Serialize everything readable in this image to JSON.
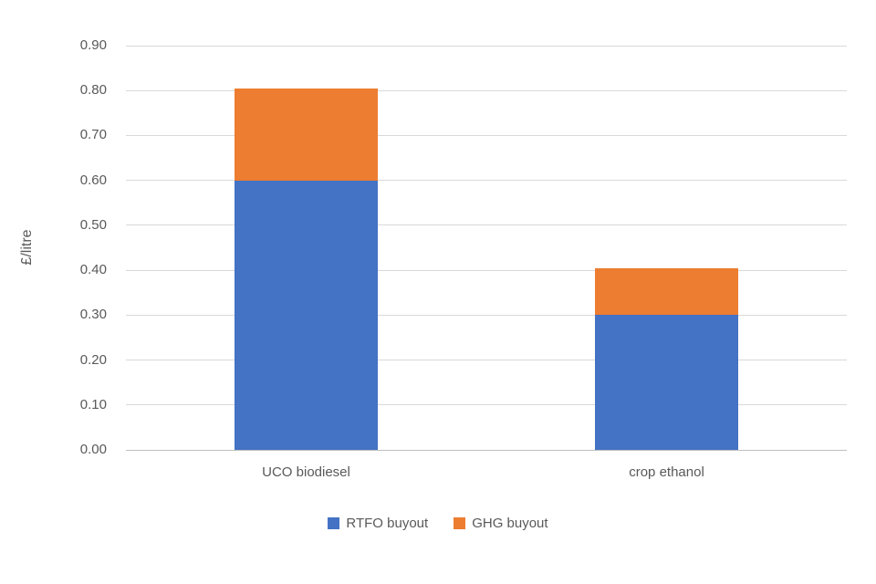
{
  "chart_data": {
    "type": "bar",
    "stacked": true,
    "title": "",
    "categories": [
      "UCO biodiesel",
      "crop ethanol"
    ],
    "series": [
      {
        "name": "RTFO buyout",
        "color": "#4472C4",
        "values": [
          0.6,
          0.3
        ]
      },
      {
        "name": "GHG buyout",
        "color": "#ED7D31",
        "values": [
          0.205,
          0.105
        ]
      }
    ],
    "totals": [
      0.805,
      0.405
    ],
    "xlabel": "",
    "ylabel": "£/litre",
    "ylim": [
      0.0,
      0.9
    ],
    "ytick_step": 0.1,
    "ytick_labels": [
      "0.00",
      "0.10",
      "0.20",
      "0.30",
      "0.40",
      "0.50",
      "0.60",
      "0.70",
      "0.80",
      "0.90"
    ],
    "grid": true,
    "legend_position": "bottom"
  },
  "style": {
    "text_color": "#595959",
    "gridline_color": "#D9D9D9",
    "axis_line_color": "#BFBFBF",
    "background": "#FFFFFF"
  }
}
